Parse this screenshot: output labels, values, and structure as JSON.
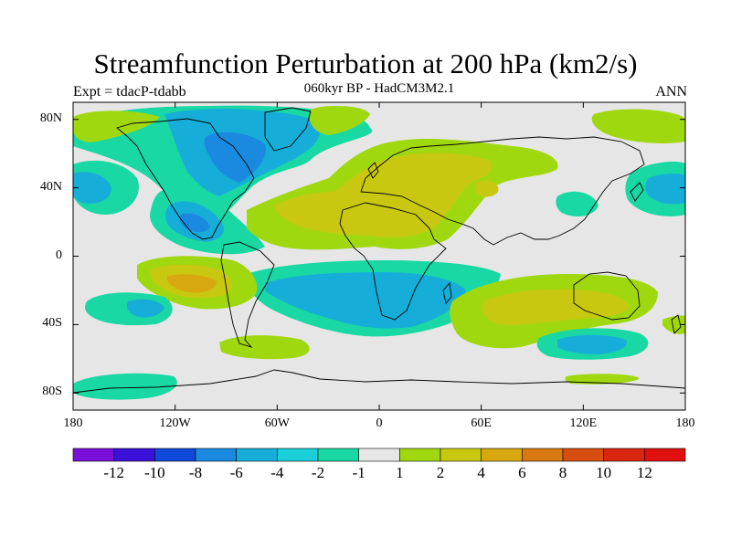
{
  "figure": {
    "title": "Streamfunction Perturbation at 200 hPa (km2/s)",
    "subtitle": "060kyr BP - HadCM3M2.1",
    "left_label": "Expt = tdacP-tdabb",
    "right_label": "ANN"
  },
  "map": {
    "projection": "cylindrical equidistant",
    "lon_range": [
      -180,
      180
    ],
    "lat_range": [
      -90,
      90
    ],
    "y_ticks": [
      {
        "value": 80,
        "label": "80N"
      },
      {
        "value": 40,
        "label": "40N"
      },
      {
        "value": 0,
        "label": "0"
      },
      {
        "value": -40,
        "label": "40S"
      },
      {
        "value": -80,
        "label": "80S"
      }
    ],
    "x_ticks": [
      {
        "value": -180,
        "label": "180"
      },
      {
        "value": -120,
        "label": "120W"
      },
      {
        "value": -60,
        "label": "60W"
      },
      {
        "value": 0,
        "label": "0"
      },
      {
        "value": 60,
        "label": "60E"
      },
      {
        "value": 120,
        "label": "120E"
      },
      {
        "value": 180,
        "label": "180"
      }
    ],
    "background_color": "#e6e6e6",
    "coastline_color": "#000000"
  },
  "colorbar": {
    "labels": [
      "-12",
      "-10",
      "-8",
      "-6",
      "-4",
      "-2",
      "-1",
      "1",
      "2",
      "4",
      "6",
      "8",
      "10",
      "12"
    ],
    "colors": [
      "#7a10d8",
      "#3b10d8",
      "#1048d8",
      "#1a8ae0",
      "#16aed8",
      "#1acfd8",
      "#1ad8a4",
      "#e6e6e6",
      "#a0d810",
      "#c8c810",
      "#d8a810",
      "#d87810",
      "#d84e10",
      "#d82610",
      "#e01010"
    ]
  },
  "chart_data": {
    "type": "contour-map",
    "title": "Streamfunction Perturbation at 200 hPa (km2/s)",
    "variable": "streamfunction perturbation",
    "level": "200 hPa",
    "units": "km2/s",
    "period": "ANN",
    "contour_levels": [
      -12,
      -10,
      -8,
      -6,
      -4,
      -2,
      -1,
      1,
      2,
      4,
      6,
      8,
      10,
      12
    ],
    "features": [
      {
        "lon": -70,
        "lat": 55,
        "value": -5,
        "desc": "negative over Canada/Greenland"
      },
      {
        "lon": -105,
        "lat": 20,
        "value": -4,
        "desc": "negative over Mexico/central America"
      },
      {
        "lon": -165,
        "lat": 40,
        "value": -3,
        "desc": "negative north Pacific"
      },
      {
        "lon": 155,
        "lat": 40,
        "value": -3,
        "desc": "negative NW Pacific"
      },
      {
        "lon": 25,
        "lat": 45,
        "value": 3,
        "desc": "positive over Europe/N Africa"
      },
      {
        "lon": -110,
        "lat": -15,
        "value": 5,
        "desc": "positive SE Pacific"
      },
      {
        "lon": 0,
        "lat": -20,
        "value": -4,
        "desc": "negative south Atlantic"
      },
      {
        "lon": 70,
        "lat": -30,
        "value": 3,
        "desc": "positive south Indian Ocean"
      },
      {
        "lon": 135,
        "lat": -50,
        "value": -3,
        "desc": "negative south of Australia"
      }
    ]
  }
}
